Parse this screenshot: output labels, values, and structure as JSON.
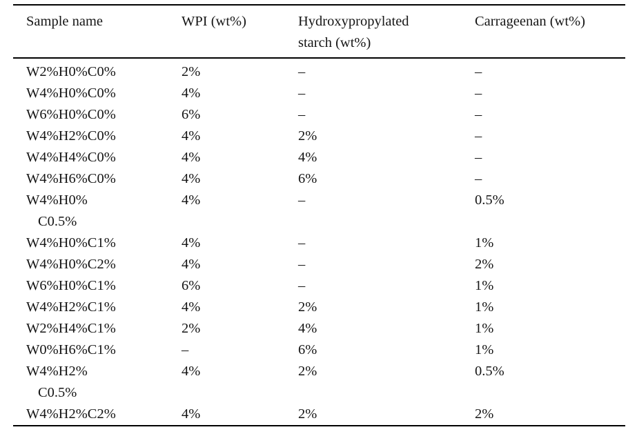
{
  "page": {
    "background_color": "#ffffff",
    "text_color": "#151515",
    "rule_color": "#000000"
  },
  "table": {
    "headers": [
      {
        "lines": [
          "Sample name"
        ]
      },
      {
        "lines": [
          "WPI (wt%)"
        ]
      },
      {
        "lines": [
          "Hydroxypropylated",
          "starch (wt%)"
        ]
      },
      {
        "lines": [
          "Carrageenan (wt%)"
        ]
      }
    ],
    "rows": [
      {
        "name_lines": [
          "W2%H0%C0%"
        ],
        "wpi": "2%",
        "starch": "–",
        "carrageenan": "–"
      },
      {
        "name_lines": [
          "W4%H0%C0%"
        ],
        "wpi": "4%",
        "starch": "–",
        "carrageenan": "–"
      },
      {
        "name_lines": [
          "W6%H0%C0%"
        ],
        "wpi": "6%",
        "starch": "–",
        "carrageenan": "–"
      },
      {
        "name_lines": [
          "W4%H2%C0%"
        ],
        "wpi": "4%",
        "starch": "2%",
        "carrageenan": "–"
      },
      {
        "name_lines": [
          "W4%H4%C0%"
        ],
        "wpi": "4%",
        "starch": "4%",
        "carrageenan": "–"
      },
      {
        "name_lines": [
          "W4%H6%C0%"
        ],
        "wpi": "4%",
        "starch": "6%",
        "carrageenan": "–"
      },
      {
        "name_lines": [
          "W4%H0%",
          "C0.5%"
        ],
        "wpi": "4%",
        "starch": "–",
        "carrageenan": "0.5%"
      },
      {
        "name_lines": [
          "W4%H0%C1%"
        ],
        "wpi": "4%",
        "starch": "–",
        "carrageenan": "1%"
      },
      {
        "name_lines": [
          "W4%H0%C2%"
        ],
        "wpi": "4%",
        "starch": "–",
        "carrageenan": "2%"
      },
      {
        "name_lines": [
          "W6%H0%C1%"
        ],
        "wpi": "6%",
        "starch": "–",
        "carrageenan": "1%"
      },
      {
        "name_lines": [
          "W4%H2%C1%"
        ],
        "wpi": "4%",
        "starch": "2%",
        "carrageenan": "1%"
      },
      {
        "name_lines": [
          "W2%H4%C1%"
        ],
        "wpi": "2%",
        "starch": "4%",
        "carrageenan": "1%"
      },
      {
        "name_lines": [
          "W0%H6%C1%"
        ],
        "wpi": "–",
        "starch": "6%",
        "carrageenan": "1%"
      },
      {
        "name_lines": [
          "W4%H2%",
          "C0.5%"
        ],
        "wpi": "4%",
        "starch": "2%",
        "carrageenan": "0.5%"
      },
      {
        "name_lines": [
          "W4%H2%C2%"
        ],
        "wpi": "4%",
        "starch": "2%",
        "carrageenan": "2%"
      }
    ]
  }
}
